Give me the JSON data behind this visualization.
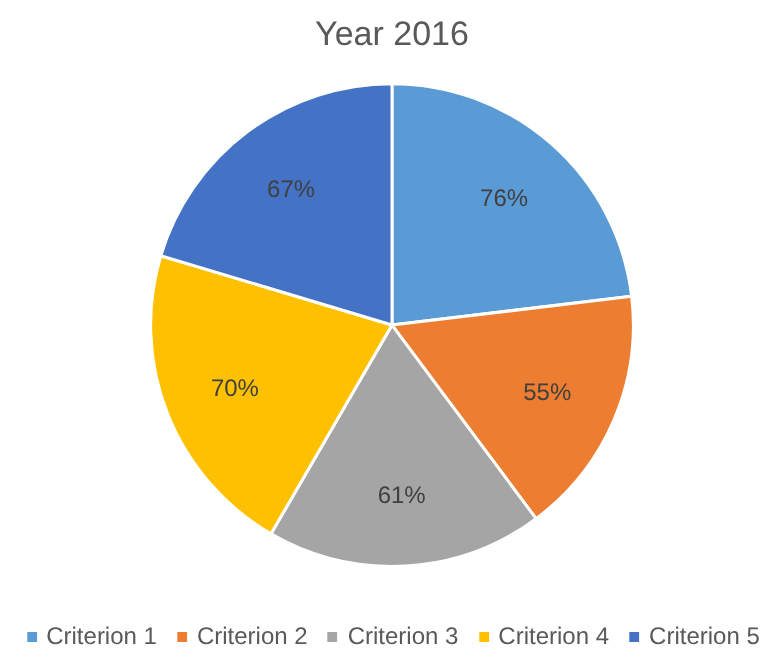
{
  "chart_data": {
    "type": "pie",
    "title": "Year 2016",
    "categories": [
      "Criterion 1",
      "Criterion 2",
      "Criterion 3",
      "Criterion 4",
      "Criterion 5"
    ],
    "values": [
      76,
      55,
      61,
      70,
      67
    ],
    "value_labels": [
      "76%",
      "55%",
      "61%",
      "70%",
      "67%"
    ],
    "colors": [
      "#5b9bd5",
      "#ed7d31",
      "#a5a5a5",
      "#ffc000",
      "#4472c4"
    ],
    "legend": "bottom"
  }
}
